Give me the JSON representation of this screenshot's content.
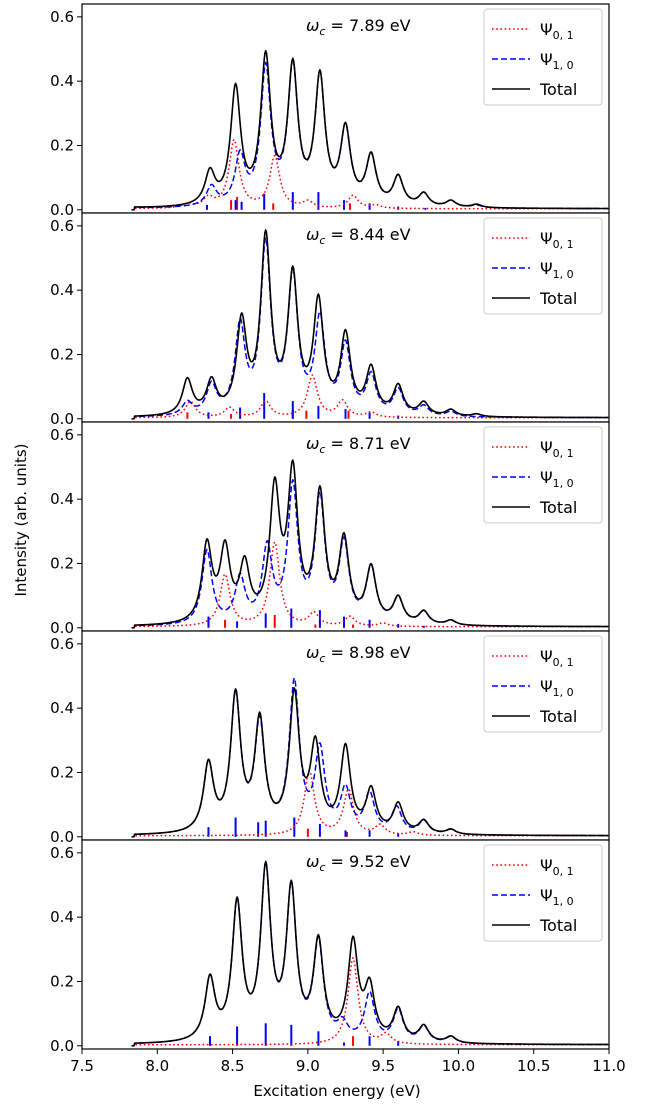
{
  "chart_data": {
    "type": "line",
    "xlabel": "Excitation energy (eV)",
    "ylabel": "Intensity (arb. units)",
    "xlim": [
      7.5,
      11.0
    ],
    "ylim": [
      -0.01,
      0.64
    ],
    "xticks": [
      "7.5",
      "8.0",
      "8.5",
      "9.0",
      "9.5",
      "10.0",
      "10.5",
      "11.0"
    ],
    "yticks": [
      "0.0",
      "0.2",
      "0.4",
      "0.6"
    ],
    "legend": {
      "placement": "top-right",
      "entries": [
        {
          "label": "Ψ",
          "sub": "0, 1",
          "color": "#ff0000",
          "style": "dotted"
        },
        {
          "label": "Ψ",
          "sub": "1, 0",
          "color": "#0000ff",
          "style": "dashed"
        },
        {
          "label": "Total",
          "sub": "",
          "color": "#000000",
          "style": "solid"
        }
      ]
    },
    "panels": [
      {
        "annotation": "ω",
        "annotation_sub": "c",
        "annotation_value": " = 7.89 eV",
        "series": [
          {
            "name": "Ψ0,1",
            "peaks": [
              [
                8.2,
                0.012
              ],
              [
                8.34,
                0.03
              ],
              [
                8.51,
                0.21
              ],
              [
                8.78,
                0.16
              ],
              [
                9.0,
                0.02
              ],
              [
                9.3,
                0.04
              ],
              [
                9.45,
                0.01
              ]
            ]
          },
          {
            "name": "Ψ1,0",
            "peaks": [
              [
                7.72,
                0.02
              ],
              [
                8.36,
                0.06
              ],
              [
                8.55,
                0.15
              ],
              [
                8.72,
                0.42
              ],
              [
                8.9,
                0.42
              ],
              [
                9.08,
                0.39
              ],
              [
                9.25,
                0.23
              ],
              [
                9.42,
                0.15
              ],
              [
                9.6,
                0.09
              ],
              [
                9.77,
                0.04
              ],
              [
                9.95,
                0.02
              ],
              [
                10.12,
                0.008
              ]
            ]
          },
          {
            "name": "Total",
            "peaks": [
              [
                7.72,
                0.02
              ],
              [
                8.35,
                0.1
              ],
              [
                8.52,
                0.36
              ],
              [
                8.72,
                0.45
              ],
              [
                8.9,
                0.42
              ],
              [
                9.08,
                0.39
              ],
              [
                9.25,
                0.23
              ],
              [
                9.42,
                0.15
              ],
              [
                9.6,
                0.09
              ],
              [
                9.77,
                0.04
              ],
              [
                9.95,
                0.02
              ],
              [
                10.12,
                0.01
              ]
            ]
          }
        ],
        "sticks": [
          {
            "color": "#ff0000",
            "points": [
              [
                8.49,
                0.03
              ],
              [
                8.53,
                0.04
              ],
              [
                8.77,
                0.02
              ],
              [
                9.28,
                0.02
              ]
            ]
          },
          {
            "color": "#0000ff",
            "points": [
              [
                8.33,
                0.015
              ],
              [
                8.52,
                0.03
              ],
              [
                8.56,
                0.025
              ],
              [
                8.71,
                0.05
              ],
              [
                8.9,
                0.055
              ],
              [
                9.07,
                0.055
              ],
              [
                9.24,
                0.03
              ],
              [
                9.41,
                0.02
              ],
              [
                9.6,
                0.01
              ],
              [
                9.78,
                0.006
              ]
            ]
          }
        ]
      },
      {
        "annotation": "ω",
        "annotation_sub": "c",
        "annotation_value": " = 8.44 eV",
        "series": [
          {
            "name": "Ψ0,1",
            "peaks": [
              [
                8.22,
                0.05
              ],
              [
                8.48,
                0.03
              ],
              [
                8.72,
                0.05
              ],
              [
                9.03,
                0.13
              ],
              [
                9.23,
                0.05
              ],
              [
                9.42,
                0.015
              ]
            ]
          },
          {
            "name": "Ψ1,0",
            "peaks": [
              [
                8.2,
                0.04
              ],
              [
                8.36,
                0.09
              ],
              [
                8.55,
                0.27
              ],
              [
                8.72,
                0.52
              ],
              [
                8.9,
                0.42
              ],
              [
                9.08,
                0.29
              ],
              [
                9.25,
                0.21
              ],
              [
                9.42,
                0.12
              ],
              [
                9.6,
                0.08
              ],
              [
                9.77,
                0.03
              ],
              [
                9.95,
                0.015
              ]
            ]
          },
          {
            "name": "Total",
            "peaks": [
              [
                8.2,
                0.11
              ],
              [
                8.36,
                0.1
              ],
              [
                8.56,
                0.28
              ],
              [
                8.72,
                0.54
              ],
              [
                8.9,
                0.42
              ],
              [
                9.07,
                0.34
              ],
              [
                9.25,
                0.24
              ],
              [
                9.42,
                0.14
              ],
              [
                9.6,
                0.09
              ],
              [
                9.77,
                0.04
              ],
              [
                9.95,
                0.02
              ],
              [
                10.12,
                0.008
              ]
            ]
          }
        ],
        "sticks": [
          {
            "color": "#ff0000",
            "points": [
              [
                8.2,
                0.02
              ],
              [
                8.49,
                0.015
              ],
              [
                8.9,
                0.03
              ],
              [
                8.99,
                0.025
              ],
              [
                9.27,
                0.025
              ]
            ]
          },
          {
            "color": "#0000ff",
            "points": [
              [
                8.34,
                0.02
              ],
              [
                8.55,
                0.035
              ],
              [
                8.71,
                0.08
              ],
              [
                8.9,
                0.055
              ],
              [
                9.07,
                0.04
              ],
              [
                9.25,
                0.03
              ],
              [
                9.41,
                0.02
              ],
              [
                9.6,
                0.01
              ]
            ]
          }
        ]
      },
      {
        "annotation": "ω",
        "annotation_sub": "c",
        "annotation_value": " = 8.71 eV",
        "series": [
          {
            "name": "Ψ0,1",
            "peaks": [
              [
                8.45,
                0.16
              ],
              [
                8.78,
                0.26
              ],
              [
                9.04,
                0.04
              ],
              [
                9.28,
                0.03
              ],
              [
                9.5,
                0.01
              ]
            ]
          },
          {
            "name": "Ψ1,0",
            "peaks": [
              [
                8.33,
                0.23
              ],
              [
                8.55,
                0.14
              ],
              [
                8.73,
                0.23
              ],
              [
                8.9,
                0.42
              ],
              [
                9.08,
                0.38
              ],
              [
                9.24,
                0.24
              ],
              [
                9.42,
                0.17
              ],
              [
                9.6,
                0.08
              ],
              [
                9.77,
                0.04
              ],
              [
                9.95,
                0.015
              ]
            ]
          },
          {
            "name": "Total",
            "peaks": [
              [
                8.33,
                0.24
              ],
              [
                8.45,
                0.22
              ],
              [
                8.58,
                0.17
              ],
              [
                8.78,
                0.4
              ],
              [
                8.9,
                0.45
              ],
              [
                9.08,
                0.39
              ],
              [
                9.24,
                0.25
              ],
              [
                9.42,
                0.17
              ],
              [
                9.6,
                0.08
              ],
              [
                9.77,
                0.04
              ],
              [
                9.95,
                0.015
              ]
            ]
          }
        ],
        "sticks": [
          {
            "color": "#ff0000",
            "points": [
              [
                8.45,
                0.025
              ],
              [
                8.78,
                0.04
              ],
              [
                9.05,
                0.01
              ],
              [
                9.3,
                0.01
              ]
            ]
          },
          {
            "color": "#0000ff",
            "points": [
              [
                8.34,
                0.035
              ],
              [
                8.53,
                0.02
              ],
              [
                8.72,
                0.045
              ],
              [
                8.89,
                0.06
              ],
              [
                9.08,
                0.055
              ],
              [
                9.24,
                0.035
              ],
              [
                9.41,
                0.025
              ],
              [
                9.6,
                0.012
              ],
              [
                9.77,
                0.006
              ]
            ]
          }
        ]
      },
      {
        "annotation": "ω",
        "annotation_sub": "c",
        "annotation_value": " = 8.98 eV",
        "series": [
          {
            "name": "Ψ0,1",
            "peaks": [
              [
                9.01,
                0.2
              ],
              [
                9.27,
                0.14
              ],
              [
                9.48,
                0.03
              ],
              [
                9.7,
                0.01
              ]
            ]
          },
          {
            "name": "Ψ1,0",
            "peaks": [
              [
                8.34,
                0.21
              ],
              [
                8.52,
                0.42
              ],
              [
                8.68,
                0.33
              ],
              [
                8.91,
                0.46
              ],
              [
                9.08,
                0.25
              ],
              [
                9.25,
                0.13
              ],
              [
                9.41,
                0.12
              ],
              [
                9.59,
                0.08
              ],
              [
                9.77,
                0.04
              ],
              [
                9.95,
                0.015
              ]
            ]
          },
          {
            "name": "Total",
            "peaks": [
              [
                8.34,
                0.21
              ],
              [
                8.52,
                0.42
              ],
              [
                8.68,
                0.34
              ],
              [
                8.91,
                0.42
              ],
              [
                9.05,
                0.26
              ],
              [
                9.25,
                0.26
              ],
              [
                9.42,
                0.13
              ],
              [
                9.6,
                0.09
              ],
              [
                9.77,
                0.04
              ],
              [
                9.95,
                0.015
              ]
            ]
          }
        ],
        "sticks": [
          {
            "color": "#ff0000",
            "points": [
              [
                9.0,
                0.025
              ],
              [
                9.26,
                0.015
              ]
            ]
          },
          {
            "color": "#0000ff",
            "points": [
              [
                8.34,
                0.03
              ],
              [
                8.52,
                0.06
              ],
              [
                8.67,
                0.045
              ],
              [
                8.72,
                0.05
              ],
              [
                8.91,
                0.06
              ],
              [
                9.08,
                0.04
              ],
              [
                9.25,
                0.02
              ],
              [
                9.41,
                0.02
              ],
              [
                9.6,
                0.01
              ]
            ]
          }
        ]
      },
      {
        "annotation": "ω",
        "annotation_sub": "c",
        "annotation_value": " = 9.52 eV",
        "series": [
          {
            "name": "Ψ0,1",
            "peaks": [
              [
                9.3,
                0.27
              ],
              [
                9.52,
                0.03
              ]
            ]
          },
          {
            "name": "Ψ1,0",
            "peaks": [
              [
                8.35,
                0.19
              ],
              [
                8.53,
                0.42
              ],
              [
                8.72,
                0.52
              ],
              [
                8.89,
                0.46
              ],
              [
                9.07,
                0.3
              ],
              [
                9.23,
                0.05
              ],
              [
                9.41,
                0.15
              ],
              [
                9.6,
                0.1
              ],
              [
                9.77,
                0.05
              ],
              [
                9.95,
                0.02
              ]
            ]
          },
          {
            "name": "Total",
            "peaks": [
              [
                8.35,
                0.19
              ],
              [
                8.53,
                0.42
              ],
              [
                8.72,
                0.52
              ],
              [
                8.89,
                0.46
              ],
              [
                9.07,
                0.3
              ],
              [
                9.3,
                0.3
              ],
              [
                9.41,
                0.16
              ],
              [
                9.6,
                0.1
              ],
              [
                9.77,
                0.05
              ],
              [
                9.95,
                0.02
              ]
            ]
          }
        ],
        "sticks": [
          {
            "color": "#ff0000",
            "points": [
              [
                9.3,
                0.03
              ]
            ]
          },
          {
            "color": "#0000ff",
            "points": [
              [
                8.35,
                0.03
              ],
              [
                8.53,
                0.06
              ],
              [
                8.72,
                0.07
              ],
              [
                8.89,
                0.065
              ],
              [
                9.07,
                0.045
              ],
              [
                9.24,
                0.01
              ],
              [
                9.41,
                0.03
              ],
              [
                9.6,
                0.015
              ]
            ]
          }
        ]
      }
    ]
  }
}
